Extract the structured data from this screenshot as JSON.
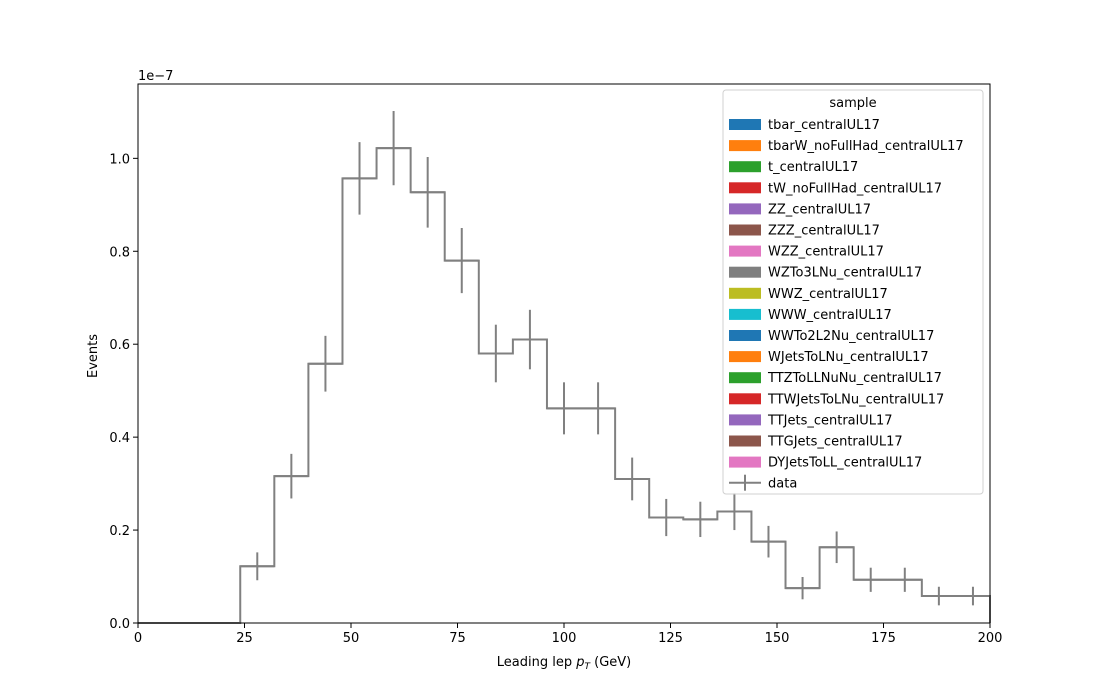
{
  "chart_data": {
    "type": "line",
    "title": "",
    "xlabel_main": "Leading lep ",
    "xlabel_symbol": "p",
    "xlabel_sub": "T",
    "xlabel_unit": " (GeV)",
    "ylabel": "Events",
    "y_multiplier": "1e−7",
    "xlim": [
      0,
      200
    ],
    "ylim": [
      0,
      1.16
    ],
    "x_ticks": [
      0,
      25,
      50,
      75,
      100,
      125,
      150,
      175,
      200
    ],
    "x_tick_labels": [
      "0",
      "25",
      "50",
      "75",
      "100",
      "125",
      "150",
      "175",
      "200"
    ],
    "y_ticks": [
      0,
      0.2,
      0.4,
      0.6,
      0.8,
      1.0
    ],
    "y_tick_labels": [
      "0.0",
      "0.2",
      "0.4",
      "0.6",
      "0.8",
      "1.0"
    ],
    "grid": false,
    "legend_position": "top-right",
    "legend_title": "sample",
    "legend_entries": [
      {
        "name": "tbar_centralUL17",
        "color": "#1f77b4"
      },
      {
        "name": "tbarW_noFullHad_centralUL17",
        "color": "#ff7f0e"
      },
      {
        "name": "t_centralUL17",
        "color": "#2ca02c"
      },
      {
        "name": "tW_noFullHad_centralUL17",
        "color": "#d62728"
      },
      {
        "name": "ZZ_centralUL17",
        "color": "#9467bd"
      },
      {
        "name": "ZZZ_centralUL17",
        "color": "#8c564b"
      },
      {
        "name": "WZZ_centralUL17",
        "color": "#e377c2"
      },
      {
        "name": "WZTo3LNu_centralUL17",
        "color": "#7f7f7f"
      },
      {
        "name": "WWZ_centralUL17",
        "color": "#bcbd22"
      },
      {
        "name": "WWW_centralUL17",
        "color": "#17becf"
      },
      {
        "name": "WWTo2L2Nu_centralUL17",
        "color": "#1f77b4"
      },
      {
        "name": "WJetsToLNu_centralUL17",
        "color": "#ff7f0e"
      },
      {
        "name": "TTZToLLNuNu_centralUL17",
        "color": "#2ca02c"
      },
      {
        "name": "TTWJetsToLNu_centralUL17",
        "color": "#d62728"
      },
      {
        "name": "TTJets_centralUL17",
        "color": "#9467bd"
      },
      {
        "name": "TTGJets_centralUL17",
        "color": "#8c564b"
      },
      {
        "name": "DYJetsToLL_centralUL17",
        "color": "#e377c2"
      }
    ],
    "data_series": {
      "name": "data",
      "color": "#808080",
      "bin_edges": [
        0,
        8,
        16,
        24,
        32,
        40,
        48,
        56,
        64,
        72,
        80,
        88,
        96,
        104,
        112,
        120,
        128,
        136,
        144,
        152,
        160,
        168,
        176,
        184,
        192,
        200
      ],
      "values": [
        0,
        0,
        0,
        0.122,
        0.316,
        0.558,
        0.957,
        1.022,
        0.927,
        0.78,
        0.58,
        0.61,
        0.462,
        0.462,
        0.31,
        0.227,
        0.223,
        0.24,
        0.175,
        0.075,
        0.163,
        0.093,
        0.093,
        0.058,
        0.058
      ],
      "errors": [
        0,
        0,
        0,
        0.03,
        0.048,
        0.06,
        0.078,
        0.08,
        0.076,
        0.07,
        0.062,
        0.064,
        0.056,
        0.056,
        0.046,
        0.04,
        0.038,
        0.04,
        0.034,
        0.024,
        0.034,
        0.026,
        0.026,
        0.02,
        0.02
      ]
    }
  }
}
